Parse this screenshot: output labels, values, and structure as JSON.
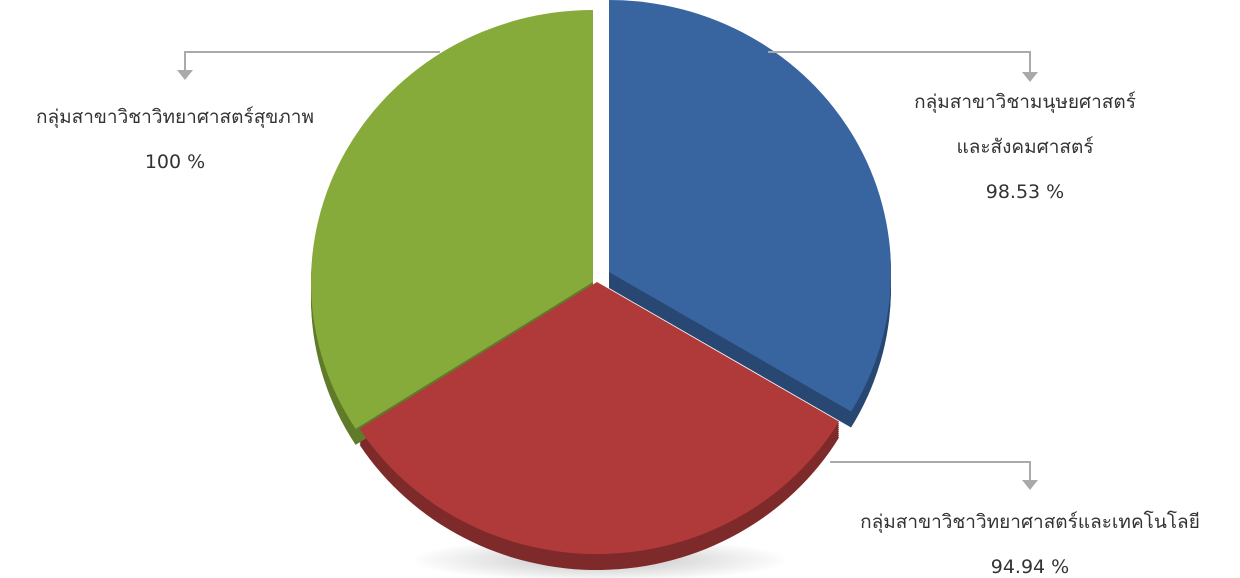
{
  "chart_data": {
    "type": "pie",
    "categories": [
      "กลุ่มสาขาวิชามนุษยศาสตร์\nและสังคมศาสตร์",
      "กลุ่มสาขาวิชาวิทยาศาสตร์และเทคโนโลยี",
      "กลุ่มสาขาวิชาวิทยาศาสตร์สุขภาพ"
    ],
    "values": [
      98.53,
      94.94,
      100
    ],
    "value_labels": [
      "98.53 %",
      "94.94 %",
      "100 %"
    ],
    "colors": [
      "#3864a0",
      "#b03a3a",
      "#86ab3a"
    ]
  }
}
